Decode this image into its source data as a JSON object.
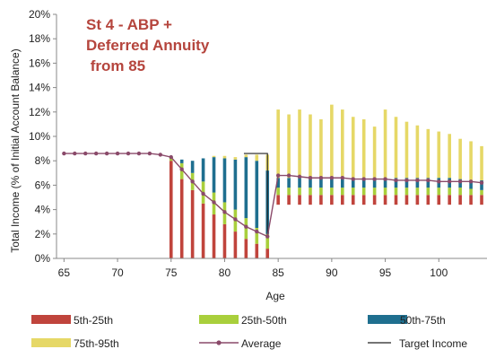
{
  "chart_data": {
    "type": "bar",
    "title_lines": [
      "St 4 - ABP +",
      "Deferred Annuity",
      " from 85"
    ],
    "xlabel": "Age",
    "ylabel": "Total Income (% of Initial Account Balance)",
    "x_ticks": [
      65,
      70,
      75,
      80,
      85,
      90,
      95,
      100
    ],
    "y_ticks": [
      "0%",
      "2%",
      "4%",
      "6%",
      "8%",
      "10%",
      "12%",
      "14%",
      "16%",
      "18%",
      "20%"
    ],
    "ylim": [
      0,
      20
    ],
    "xlim": [
      64.3,
      104.5
    ],
    "grid": false,
    "legend_position": "bottom",
    "colors": {
      "p5_25": "#c0443c",
      "p25_50": "#a9cf3c",
      "p50_75": "#1f6f8f",
      "p75_95": "#e6d867",
      "average": "#8a4a6a",
      "target": "#222222"
    },
    "ages": [
      65,
      66,
      67,
      68,
      69,
      70,
      71,
      72,
      73,
      74,
      75,
      76,
      77,
      78,
      79,
      80,
      81,
      82,
      83,
      84,
      85,
      86,
      87,
      88,
      89,
      90,
      91,
      92,
      93,
      94,
      95,
      96,
      97,
      98,
      99,
      100,
      101,
      102,
      103,
      104
    ],
    "series": [
      {
        "name": "5th-25th",
        "key": "p5_25",
        "low": [
          8.6,
          8.6,
          8.6,
          8.6,
          8.6,
          8.6,
          8.6,
          8.6,
          8.6,
          8.5,
          0,
          0,
          0,
          0,
          0,
          0,
          0,
          0,
          0,
          0,
          4.4,
          4.4,
          4.4,
          4.4,
          4.4,
          4.4,
          4.4,
          4.4,
          4.4,
          4.4,
          4.4,
          4.4,
          4.4,
          4.4,
          4.4,
          4.4,
          4.4,
          4.4,
          4.4,
          4.4
        ],
        "high": [
          8.6,
          8.6,
          8.6,
          8.6,
          8.6,
          8.6,
          8.6,
          8.6,
          8.6,
          8.5,
          8.0,
          6.5,
          5.6,
          4.5,
          3.6,
          2.8,
          2.2,
          1.6,
          1.2,
          0.8,
          5.2,
          5.2,
          5.2,
          5.2,
          5.2,
          5.2,
          5.2,
          5.2,
          5.2,
          5.2,
          5.2,
          5.2,
          5.2,
          5.2,
          5.2,
          5.2,
          5.2,
          5.2,
          5.2,
          5.2
        ]
      },
      {
        "name": "25th-50th",
        "key": "p25_50",
        "low": [
          8.6,
          8.6,
          8.6,
          8.6,
          8.6,
          8.6,
          8.6,
          8.6,
          8.6,
          8.5,
          8.0,
          6.5,
          5.6,
          4.5,
          3.6,
          2.8,
          2.2,
          1.6,
          1.2,
          0.8,
          5.2,
          5.2,
          5.2,
          5.2,
          5.2,
          5.2,
          5.2,
          5.2,
          5.2,
          5.2,
          5.2,
          5.2,
          5.2,
          5.2,
          5.2,
          5.2,
          5.2,
          5.2,
          5.2,
          5.2
        ],
        "high": [
          8.6,
          8.6,
          8.6,
          8.6,
          8.6,
          8.6,
          8.6,
          8.6,
          8.6,
          8.5,
          8.2,
          7.8,
          7.0,
          6.3,
          5.4,
          4.6,
          4.0,
          3.3,
          2.5,
          2.0,
          5.8,
          5.8,
          5.8,
          5.8,
          5.8,
          5.8,
          5.8,
          5.8,
          5.8,
          5.8,
          5.8,
          5.8,
          5.8,
          5.8,
          5.8,
          5.8,
          5.8,
          5.8,
          5.7,
          5.6
        ]
      },
      {
        "name": "50th-75th",
        "key": "p50_75",
        "low": [
          8.6,
          8.6,
          8.6,
          8.6,
          8.6,
          8.6,
          8.6,
          8.6,
          8.6,
          8.5,
          8.2,
          7.8,
          7.0,
          6.3,
          5.4,
          4.6,
          4.0,
          3.3,
          2.5,
          2.0,
          5.8,
          5.8,
          5.8,
          5.8,
          5.8,
          5.8,
          5.8,
          5.8,
          5.8,
          5.8,
          5.8,
          5.8,
          5.8,
          5.8,
          5.8,
          5.8,
          5.8,
          5.8,
          5.7,
          5.6
        ],
        "high": [
          8.6,
          8.6,
          8.6,
          8.6,
          8.6,
          8.6,
          8.6,
          8.6,
          8.6,
          8.5,
          8.3,
          8.1,
          8.0,
          8.2,
          8.3,
          8.2,
          8.1,
          8.3,
          8.0,
          7.2,
          6.6,
          6.6,
          6.6,
          6.6,
          6.6,
          6.6,
          6.6,
          6.6,
          6.6,
          6.6,
          6.6,
          6.6,
          6.6,
          6.6,
          6.6,
          6.6,
          6.6,
          6.5,
          6.4,
          6.4
        ]
      },
      {
        "name": "75th-95th",
        "key": "p75_95",
        "low": [
          8.6,
          8.6,
          8.6,
          8.6,
          8.6,
          8.6,
          8.6,
          8.6,
          8.6,
          8.5,
          8.3,
          8.1,
          8.0,
          8.2,
          8.3,
          8.2,
          8.1,
          8.3,
          8.0,
          7.2,
          6.6,
          6.6,
          6.6,
          6.6,
          6.6,
          6.6,
          6.6,
          6.6,
          6.6,
          6.6,
          6.6,
          6.6,
          6.6,
          6.6,
          6.6,
          6.6,
          6.6,
          6.5,
          6.4,
          6.4
        ],
        "high": [
          8.6,
          8.6,
          8.6,
          8.6,
          8.6,
          8.6,
          8.6,
          8.6,
          8.6,
          8.5,
          8.3,
          8.1,
          8.0,
          8.2,
          8.4,
          8.4,
          8.3,
          8.5,
          8.5,
          8.5,
          12.2,
          11.8,
          12.2,
          11.8,
          11.4,
          12.6,
          12.2,
          11.6,
          11.4,
          10.8,
          12.2,
          11.6,
          11.2,
          10.9,
          10.6,
          10.4,
          10.2,
          9.8,
          9.6,
          9.2
        ]
      }
    ],
    "average": {
      "name": "Average",
      "values": [
        8.6,
        8.6,
        8.6,
        8.6,
        8.6,
        8.6,
        8.6,
        8.6,
        8.6,
        8.5,
        8.3,
        7.3,
        6.3,
        5.3,
        4.6,
        3.8,
        3.2,
        2.6,
        2.2,
        1.8,
        6.8,
        6.8,
        6.7,
        6.6,
        6.6,
        6.6,
        6.6,
        6.5,
        6.5,
        6.5,
        6.5,
        6.4,
        6.4,
        6.4,
        6.4,
        6.3,
        6.3,
        6.3,
        6.3,
        6.2
      ]
    },
    "target": {
      "name": "Target Income",
      "points": [
        [
          81.8,
          8.6
        ],
        [
          84,
          8.6
        ],
        [
          84,
          1.8
        ]
      ]
    }
  }
}
